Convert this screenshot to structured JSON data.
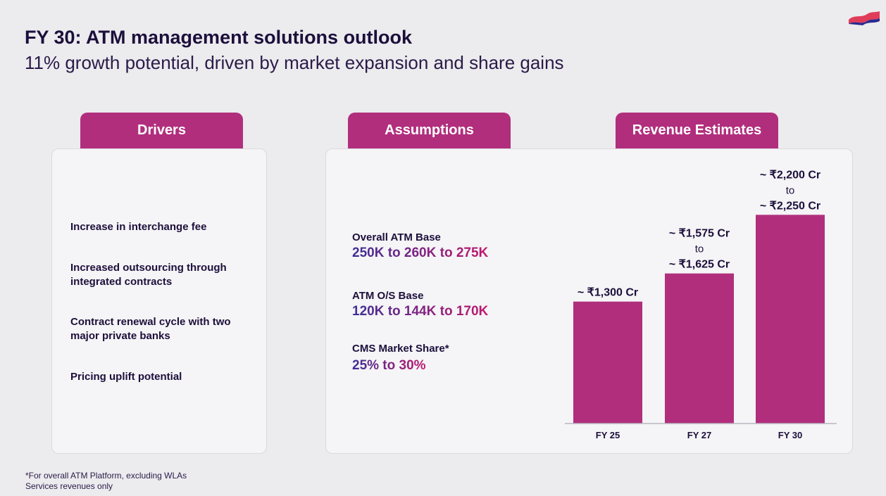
{
  "header": {
    "title": "FY 30: ATM management solutions outlook",
    "subtitle": "11% growth potential, driven by market expansion and share gains"
  },
  "tabs": {
    "drivers": "Drivers",
    "assumptions": "Assumptions",
    "revenue": "Revenue Estimates"
  },
  "drivers": [
    "Increase in interchange fee",
    "Increased outsourcing through integrated contracts",
    "Contract renewal cycle with two major private banks",
    "Pricing uplift potential"
  ],
  "assumptions": [
    {
      "label": "Overall ATM Base",
      "value": "250K to 260K to 275K"
    },
    {
      "label": "ATM O/S Base",
      "value": "120K to 144K to 170K"
    },
    {
      "label": "CMS Market Share*",
      "value": "25% to 30%"
    }
  ],
  "footnote": {
    "line1": "*For overall ATM Platform, excluding WLAs",
    "line2": "Services revenues only"
  },
  "colors": {
    "accent": "#b12e7d",
    "title": "#1c0f3b"
  },
  "chart_data": {
    "type": "bar",
    "title": "Revenue Estimates",
    "categories": [
      "FY 25",
      "FY 27",
      "FY 30"
    ],
    "values": [
      1300,
      1600,
      2225
    ],
    "ranges": [
      [
        1300,
        1300
      ],
      [
        1575,
        1625
      ],
      [
        2200,
        2250
      ]
    ],
    "labels": [
      [
        "~ ₹1,300 Cr"
      ],
      [
        "~ ₹1,575 Cr",
        "to",
        "~ ₹1,625 Cr"
      ],
      [
        "~ ₹2,200 Cr",
        "to",
        "~ ₹2,250 Cr"
      ]
    ],
    "unit": "₹ Cr",
    "xlabel": "",
    "ylabel": "",
    "ylim": [
      0,
      2250
    ],
    "grid": false,
    "bar_color": "#b12e7d"
  }
}
